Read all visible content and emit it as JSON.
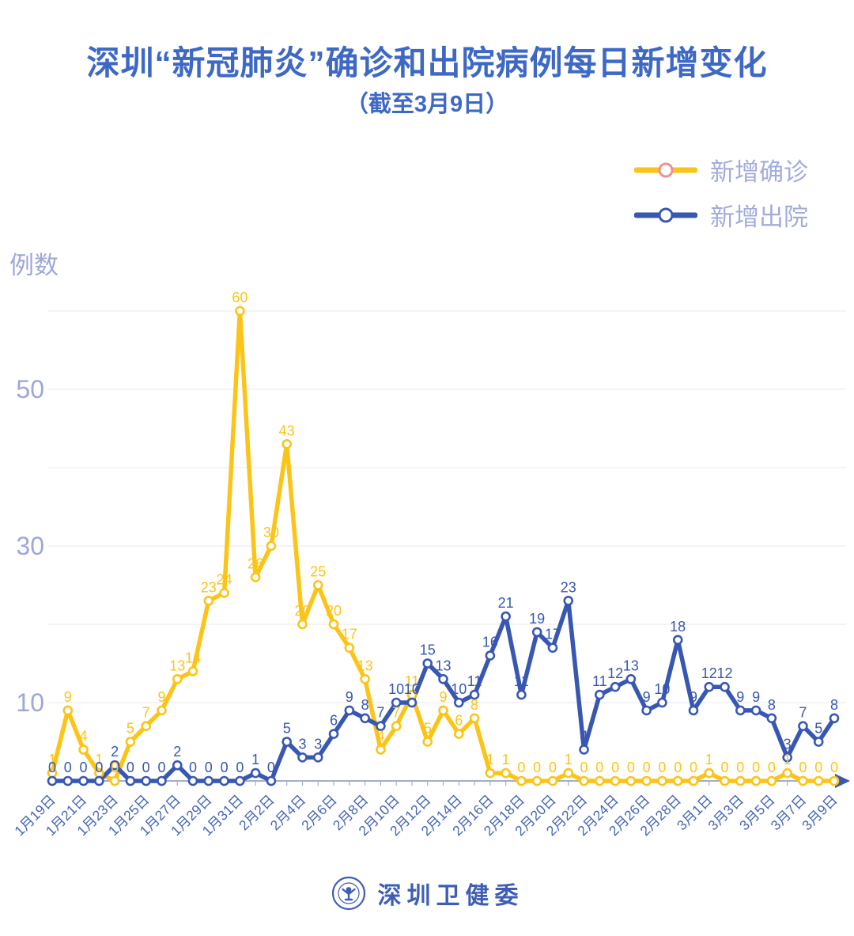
{
  "title": "深圳“新冠肺炎”确诊和出院病例每日新增变化",
  "subtitle": "（截至3月9日）",
  "legend": [
    {
      "label": "新增确诊",
      "line_color": "#FCC417",
      "marker_stroke": "#F0908E"
    },
    {
      "label": "新增出院",
      "line_color": "#3857B2",
      "marker_stroke": "#3857B2"
    }
  ],
  "y_axis": {
    "title": "例数",
    "tick_labels": [
      "10",
      "30",
      "50"
    ],
    "tick_values": [
      10,
      30,
      50
    ]
  },
  "footer": {
    "org": "深圳卫健委",
    "logo": "shenzhen-health-commission-emblem"
  },
  "colors": {
    "title_text": "#3D68C6",
    "confirmed": "#FCC417",
    "discharged": "#3857B2",
    "axis_tick_text": "#9DA7D8",
    "date_label_text": "#4565B5",
    "legend_text": "#A2ACDC",
    "gridline": "#E9E9E9",
    "axis_line": "#A3AECB",
    "footer_text": "#3E5EB4",
    "background": "#FFFFFF"
  },
  "chart_data": {
    "type": "line",
    "title": "深圳“新冠肺炎”确诊和出院病例每日新增变化（截至3月9日）",
    "xlabel": "",
    "ylabel": "例数",
    "ylim": [
      0,
      63
    ],
    "grid": true,
    "grid_values": [
      10,
      20,
      30,
      40,
      50,
      60
    ],
    "legend_position": "top-right",
    "x_label_interval": 2,
    "categories": [
      "1月19日",
      "1月20日",
      "1月21日",
      "1月22日",
      "1月23日",
      "1月24日",
      "1月25日",
      "1月26日",
      "1月27日",
      "1月28日",
      "1月29日",
      "1月30日",
      "1月31日",
      "2月1日",
      "2月2日",
      "2月3日",
      "2月4日",
      "2月5日",
      "2月6日",
      "2月7日",
      "2月8日",
      "2月9日",
      "2月10日",
      "2月11日",
      "2月12日",
      "2月13日",
      "2月14日",
      "2月15日",
      "2月16日",
      "2月17日",
      "2月18日",
      "2月19日",
      "2月20日",
      "2月21日",
      "2月22日",
      "2月23日",
      "2月24日",
      "2月25日",
      "2月26日",
      "2月27日",
      "2月28日",
      "2月29日",
      "3月1日",
      "3月2日",
      "3月3日",
      "3月4日",
      "3月5日",
      "3月6日",
      "3月7日",
      "3月8日",
      "3月9日"
    ],
    "series": [
      {
        "name": "新增确诊",
        "color": "#FCC417",
        "values": [
          1,
          9,
          4,
          1,
          0,
          5,
          7,
          9,
          13,
          14,
          23,
          24,
          60,
          26,
          30,
          43,
          20,
          25,
          20,
          17,
          13,
          4,
          7,
          11,
          5,
          9,
          6,
          8,
          1,
          1,
          0,
          0,
          0,
          1,
          0,
          0,
          0,
          0,
          0,
          0,
          0,
          0,
          1,
          0,
          0,
          0,
          0,
          1,
          0,
          0,
          0
        ]
      },
      {
        "name": "新增出院",
        "color": "#3857B2",
        "values": [
          0,
          0,
          0,
          0,
          2,
          0,
          0,
          0,
          2,
          0,
          0,
          0,
          0,
          1,
          0,
          5,
          3,
          3,
          6,
          9,
          8,
          7,
          10,
          10,
          15,
          13,
          10,
          11,
          16,
          21,
          11,
          19,
          17,
          23,
          4,
          11,
          12,
          13,
          9,
          10,
          18,
          9,
          12,
          12,
          9,
          9,
          8,
          3,
          7,
          5,
          8
        ]
      }
    ]
  }
}
